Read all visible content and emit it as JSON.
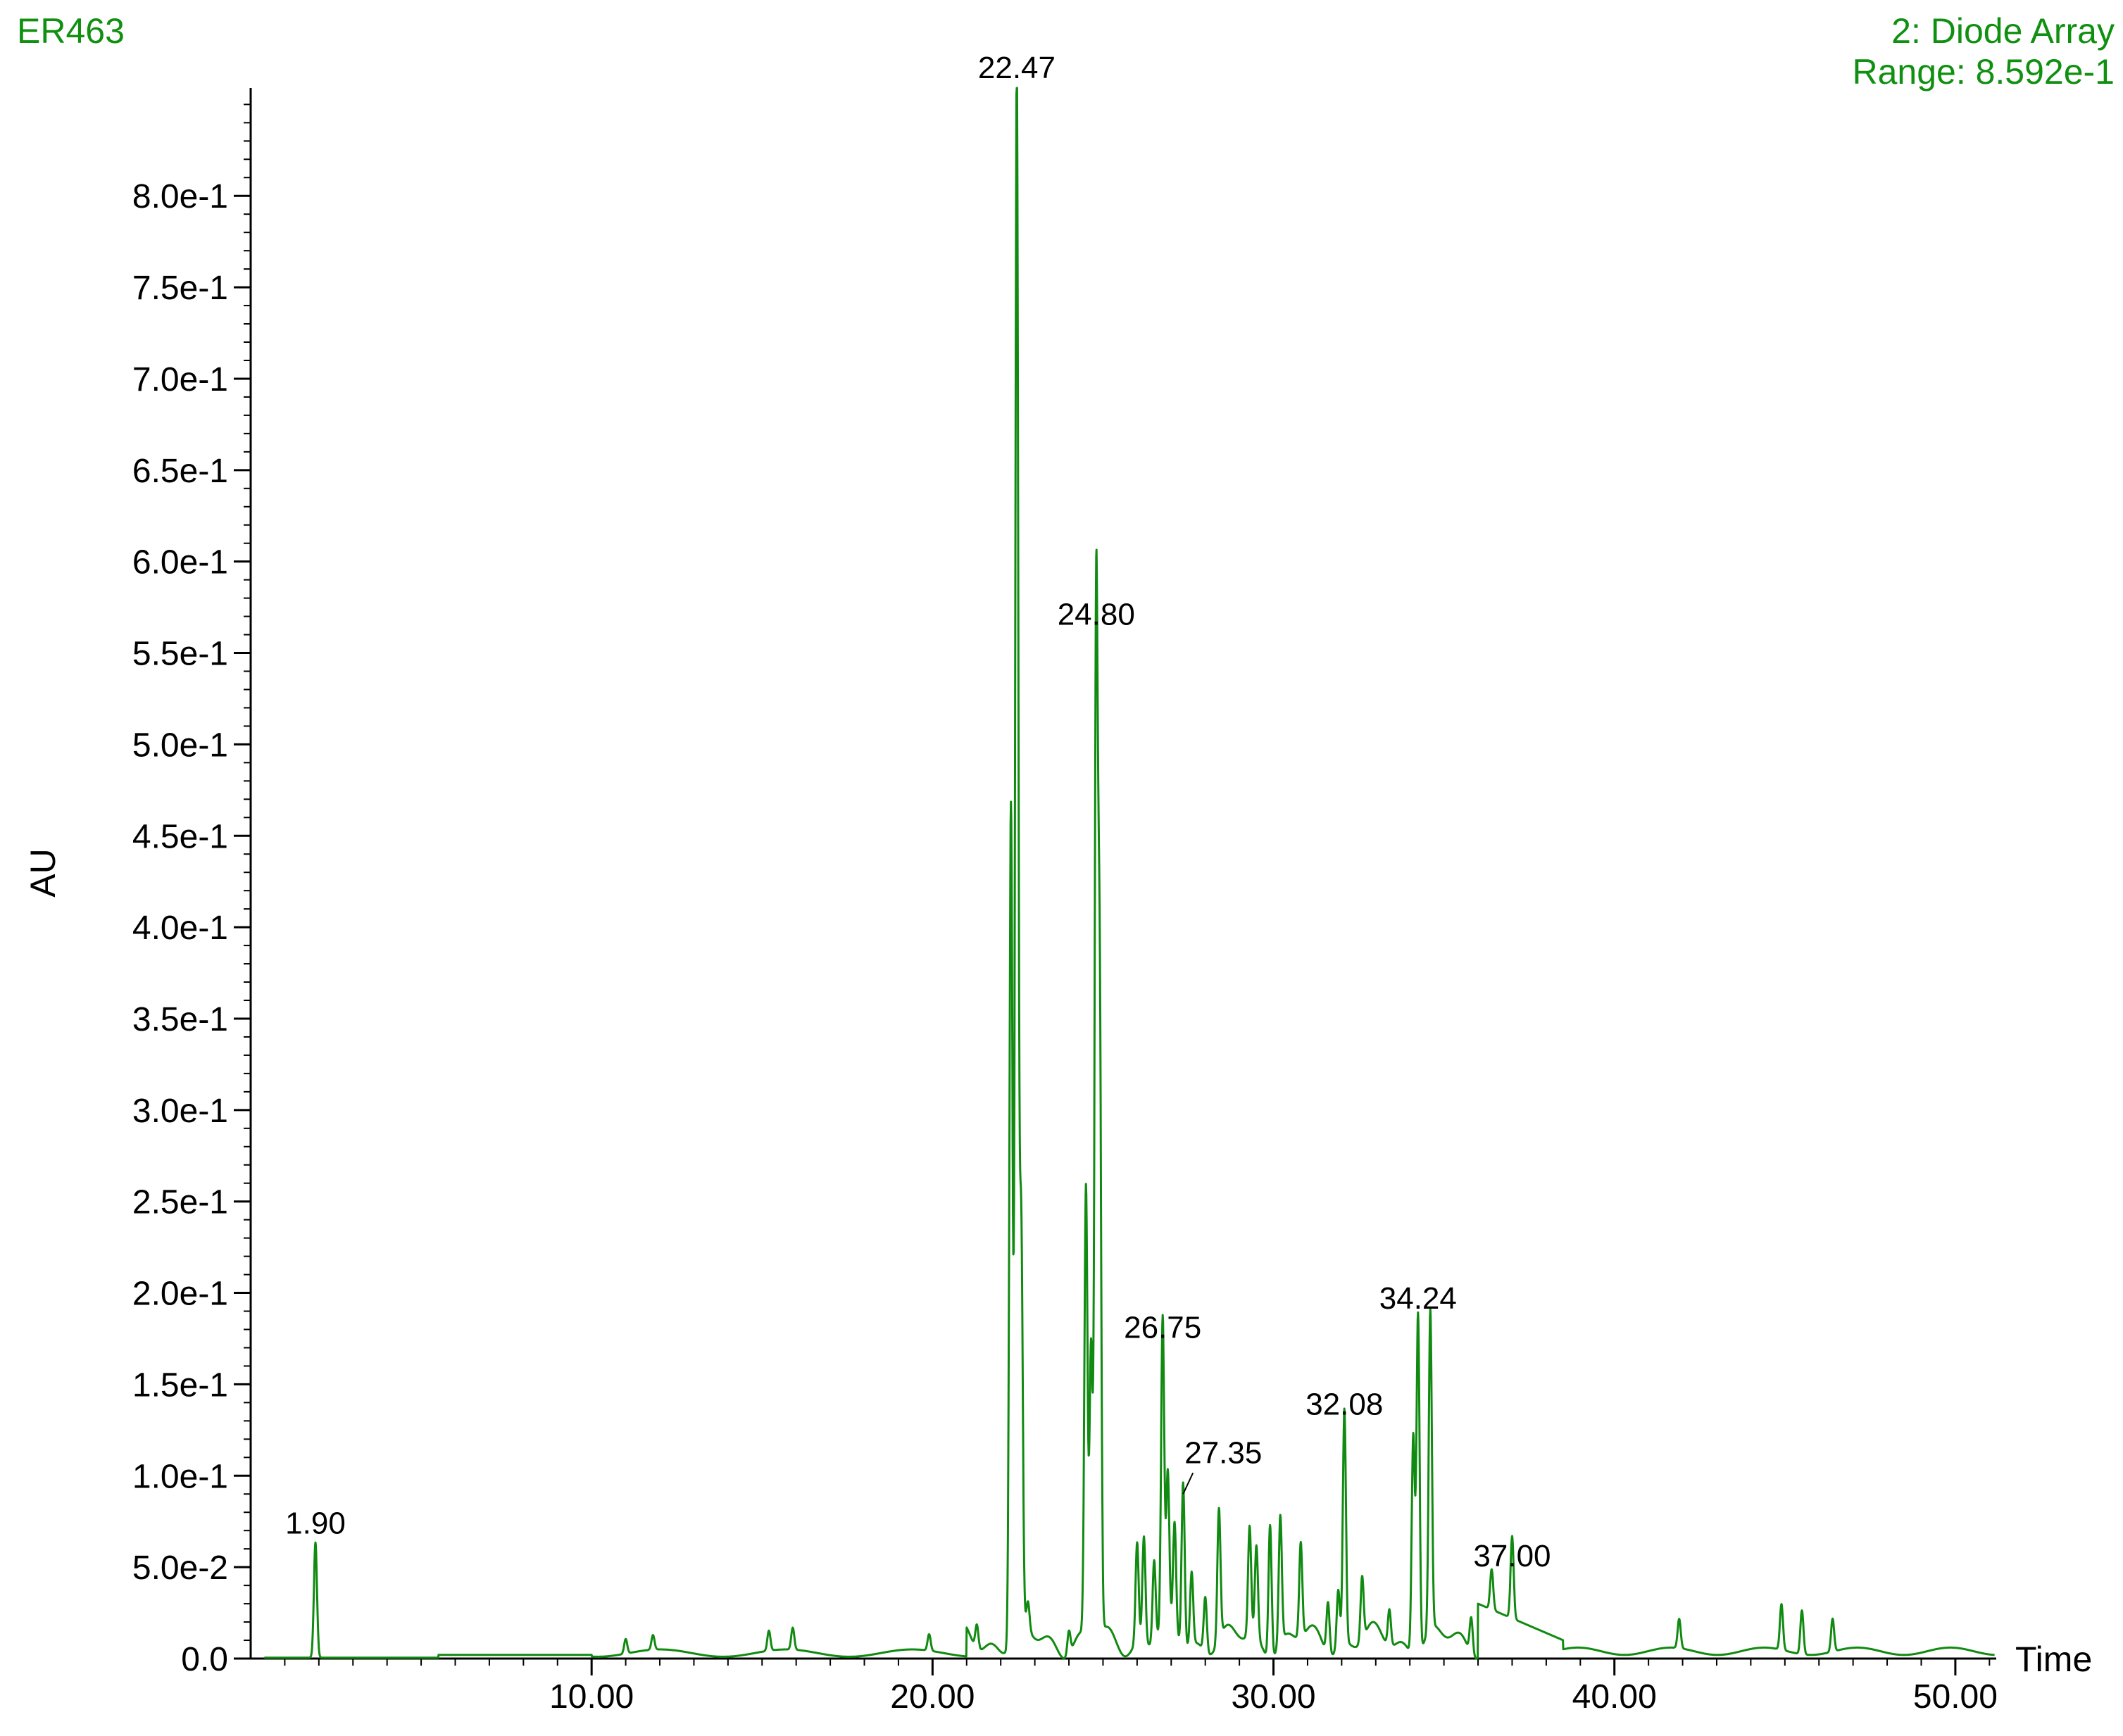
{
  "header": {
    "sample_id": "ER463",
    "trace": "2: Diode Array",
    "range_label": "Range: 8.592e-1"
  },
  "colors": {
    "trace": "#108a10",
    "header_text": "#109010",
    "axis": "#000000",
    "labels": "#000000"
  },
  "chart_data": {
    "type": "line",
    "title": "",
    "xlabel": "Time",
    "ylabel": "AU",
    "xlim": [
      0.0,
      51.2
    ],
    "ylim": [
      0.0,
      0.859
    ],
    "x_ticks": [
      10,
      20,
      30,
      40,
      50
    ],
    "x_tick_labels": [
      "10.00",
      "20.00",
      "30.00",
      "40.00",
      "50.00"
    ],
    "y_ticks": [
      0.0,
      0.05,
      0.1,
      0.15,
      0.2,
      0.25,
      0.3,
      0.35,
      0.4,
      0.45,
      0.5,
      0.55,
      0.6,
      0.65,
      0.7,
      0.75,
      0.8
    ],
    "y_tick_labels": [
      "0.0",
      "5.0e-2",
      "1.0e-1",
      "1.5e-1",
      "2.0e-1",
      "2.5e-1",
      "3.0e-1",
      "3.5e-1",
      "4.0e-1",
      "4.5e-1",
      "5.0e-1",
      "5.5e-1",
      "6.0e-1",
      "6.5e-1",
      "7.0e-1",
      "7.5e-1",
      "8.0e-1"
    ],
    "grid": false,
    "peaks": [
      {
        "label": "1.90",
        "rt": 1.9,
        "height": 0.063
      },
      {
        "label": "22.47",
        "rt": 22.47,
        "height": 0.859
      },
      {
        "label": "24.80",
        "rt": 24.8,
        "height": 0.56
      },
      {
        "label": "26.75",
        "rt": 26.75,
        "height": 0.17
      },
      {
        "label": "27.35",
        "rt": 27.35,
        "height": 0.09
      },
      {
        "label": "32.08",
        "rt": 32.08,
        "height": 0.128
      },
      {
        "label": "34.24",
        "rt": 34.24,
        "height": 0.186
      },
      {
        "label": "37.00",
        "rt": 37.0,
        "height": 0.045
      }
    ],
    "minor_peaks": [
      [
        11.0,
        0.008
      ],
      [
        11.8,
        0.008
      ],
      [
        15.2,
        0.011
      ],
      [
        15.9,
        0.012
      ],
      [
        19.9,
        0.009
      ],
      [
        21.3,
        0.013
      ],
      [
        22.3,
        0.46
      ],
      [
        22.6,
        0.22
      ],
      [
        22.8,
        0.015
      ],
      [
        24.0,
        0.013
      ],
      [
        24.5,
        0.245
      ],
      [
        24.65,
        0.16
      ],
      [
        24.9,
        0.35
      ],
      [
        26.0,
        0.055
      ],
      [
        26.2,
        0.058
      ],
      [
        26.5,
        0.045
      ],
      [
        26.9,
        0.083
      ],
      [
        27.1,
        0.06
      ],
      [
        27.6,
        0.04
      ],
      [
        28.0,
        0.03
      ],
      [
        28.4,
        0.072
      ],
      [
        29.3,
        0.06
      ],
      [
        29.5,
        0.05
      ],
      [
        29.9,
        0.073
      ],
      [
        30.2,
        0.07
      ],
      [
        30.8,
        0.052
      ],
      [
        31.6,
        0.028
      ],
      [
        31.9,
        0.032
      ],
      [
        32.6,
        0.035
      ],
      [
        33.4,
        0.02
      ],
      [
        34.1,
        0.12
      ],
      [
        34.6,
        0.175
      ],
      [
        35.8,
        0.02
      ],
      [
        36.4,
        0.022
      ],
      [
        41.9,
        0.016
      ],
      [
        44.9,
        0.025
      ],
      [
        45.5,
        0.024
      ],
      [
        46.4,
        0.018
      ]
    ]
  }
}
